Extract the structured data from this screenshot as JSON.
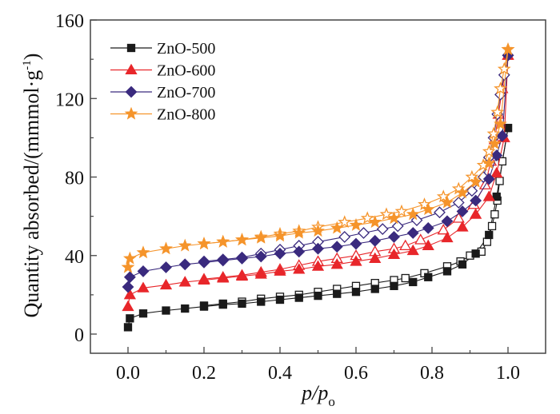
{
  "chart_data": {
    "type": "scatter",
    "title": "",
    "xlabel": "p/p_o",
    "xlabel_parts": {
      "main": "p/p",
      "sub": "o"
    },
    "ylabel": "Quantity absorbed/(mmmol·g⁻¹)",
    "ylabel_parts": {
      "main": "Quantity absorbed/(mmmol·g",
      "sup": "-1",
      "close": ")"
    },
    "xlim": [
      -0.1,
      1.1
    ],
    "ylim": [
      -5,
      160
    ],
    "xticks": [
      0.0,
      0.2,
      0.4,
      0.6,
      0.8,
      1.0
    ],
    "xtick_labels": [
      "0.0",
      "0.2",
      "0.4",
      "0.6",
      "0.8",
      "1.0"
    ],
    "xminor": [
      0.1,
      0.3,
      0.5,
      0.7,
      0.9
    ],
    "yticks": [
      0,
      40,
      80,
      120,
      160
    ],
    "ytick_labels": [
      "0",
      "40",
      "80",
      "120",
      "160"
    ],
    "yminor": [
      20,
      60,
      100,
      140
    ],
    "grid": false,
    "legend_position": "top-left",
    "series": [
      {
        "name": "ZnO-500",
        "color": "#1a1a1a",
        "marker": "square",
        "adsorption": [
          [
            0.0,
            3.5
          ],
          [
            0.005,
            8
          ],
          [
            0.04,
            10.5
          ],
          [
            0.1,
            12
          ],
          [
            0.15,
            13
          ],
          [
            0.2,
            14
          ],
          [
            0.25,
            15
          ],
          [
            0.3,
            15.5
          ],
          [
            0.35,
            16.5
          ],
          [
            0.4,
            17.5
          ],
          [
            0.45,
            18.5
          ],
          [
            0.5,
            19.5
          ],
          [
            0.55,
            20.5
          ],
          [
            0.6,
            21.5
          ],
          [
            0.65,
            23
          ],
          [
            0.7,
            24.5
          ],
          [
            0.75,
            26.5
          ],
          [
            0.79,
            29
          ],
          [
            0.84,
            32
          ],
          [
            0.88,
            35.5
          ],
          [
            0.915,
            41
          ],
          [
            0.95,
            50.5
          ],
          [
            0.97,
            70
          ],
          [
            1.0,
            105
          ]
        ],
        "desorption": [
          [
            1.0,
            105
          ],
          [
            0.985,
            88
          ],
          [
            0.978,
            78
          ],
          [
            0.972,
            68
          ],
          [
            0.965,
            61
          ],
          [
            0.958,
            55
          ],
          [
            0.945,
            47
          ],
          [
            0.93,
            42
          ],
          [
            0.9,
            40
          ],
          [
            0.875,
            37
          ],
          [
            0.84,
            34.5
          ],
          [
            0.78,
            31
          ],
          [
            0.73,
            28.5
          ],
          [
            0.7,
            27.5
          ],
          [
            0.65,
            26
          ],
          [
            0.6,
            24.5
          ],
          [
            0.55,
            23
          ],
          [
            0.5,
            21.5
          ],
          [
            0.45,
            20
          ],
          [
            0.4,
            19
          ],
          [
            0.35,
            18
          ],
          [
            0.3,
            16.5
          ],
          [
            0.25,
            15.5
          ],
          [
            0.2,
            14.5
          ]
        ]
      },
      {
        "name": "ZnO-600",
        "color": "#e8262a",
        "marker": "triangle",
        "adsorption": [
          [
            0.0,
            14
          ],
          [
            0.005,
            20
          ],
          [
            0.04,
            23.5
          ],
          [
            0.1,
            25
          ],
          [
            0.15,
            26.5
          ],
          [
            0.2,
            27.5
          ],
          [
            0.25,
            28.5
          ],
          [
            0.3,
            29.5
          ],
          [
            0.35,
            30.5
          ],
          [
            0.4,
            32
          ],
          [
            0.45,
            33
          ],
          [
            0.5,
            34.5
          ],
          [
            0.55,
            35.5
          ],
          [
            0.6,
            37
          ],
          [
            0.65,
            38.5
          ],
          [
            0.7,
            40.5
          ],
          [
            0.75,
            42.5
          ],
          [
            0.79,
            45
          ],
          [
            0.84,
            49
          ],
          [
            0.88,
            54.5
          ],
          [
            0.915,
            61
          ],
          [
            0.95,
            70
          ],
          [
            0.97,
            82
          ],
          [
            0.99,
            100
          ],
          [
            1.0,
            142
          ]
        ],
        "desorption": [
          [
            1.0,
            142
          ],
          [
            0.985,
            125
          ],
          [
            0.975,
            112
          ],
          [
            0.965,
            99
          ],
          [
            0.955,
            88
          ],
          [
            0.94,
            76
          ],
          [
            0.91,
            66
          ],
          [
            0.87,
            59
          ],
          [
            0.83,
            53
          ],
          [
            0.77,
            48
          ],
          [
            0.73,
            45
          ],
          [
            0.7,
            43.5
          ],
          [
            0.65,
            42
          ],
          [
            0.6,
            40
          ],
          [
            0.55,
            38.5
          ],
          [
            0.5,
            37
          ],
          [
            0.45,
            35
          ],
          [
            0.4,
            33
          ],
          [
            0.35,
            31.5
          ],
          [
            0.3,
            30
          ],
          [
            0.25,
            29
          ],
          [
            0.2,
            28
          ]
        ]
      },
      {
        "name": "ZnO-700",
        "color": "#3a2a7e",
        "marker": "diamond",
        "adsorption": [
          [
            0.0,
            24
          ],
          [
            0.005,
            29
          ],
          [
            0.04,
            32
          ],
          [
            0.1,
            34
          ],
          [
            0.15,
            35.5
          ],
          [
            0.2,
            36.5
          ],
          [
            0.25,
            37.5
          ],
          [
            0.3,
            38.5
          ],
          [
            0.35,
            39.5
          ],
          [
            0.4,
            41
          ],
          [
            0.45,
            42
          ],
          [
            0.5,
            43.5
          ],
          [
            0.55,
            44.5
          ],
          [
            0.6,
            46
          ],
          [
            0.65,
            47.5
          ],
          [
            0.7,
            49.5
          ],
          [
            0.75,
            51.5
          ],
          [
            0.79,
            54
          ],
          [
            0.84,
            57.5
          ],
          [
            0.88,
            62.5
          ],
          [
            0.915,
            68
          ],
          [
            0.95,
            79
          ],
          [
            0.97,
            91
          ],
          [
            0.985,
            101
          ],
          [
            1.0,
            142
          ]
        ],
        "desorption": [
          [
            1.0,
            142
          ],
          [
            0.99,
            132
          ],
          [
            0.98,
            122
          ],
          [
            0.972,
            112
          ],
          [
            0.962,
            100
          ],
          [
            0.95,
            90
          ],
          [
            0.935,
            80
          ],
          [
            0.905,
            73
          ],
          [
            0.87,
            67
          ],
          [
            0.82,
            62
          ],
          [
            0.76,
            58
          ],
          [
            0.71,
            55
          ],
          [
            0.67,
            53.5
          ],
          [
            0.62,
            51.5
          ],
          [
            0.57,
            49.5
          ],
          [
            0.5,
            47
          ],
          [
            0.45,
            45
          ],
          [
            0.4,
            43
          ],
          [
            0.35,
            41
          ],
          [
            0.3,
            39
          ],
          [
            0.25,
            38
          ],
          [
            0.2,
            37
          ]
        ]
      },
      {
        "name": "ZnO-800",
        "color": "#f5942b",
        "marker": "star",
        "adsorption": [
          [
            0.0,
            34
          ],
          [
            0.005,
            38.5
          ],
          [
            0.04,
            41.5
          ],
          [
            0.1,
            43.5
          ],
          [
            0.15,
            45
          ],
          [
            0.2,
            46
          ],
          [
            0.25,
            47
          ],
          [
            0.3,
            48
          ],
          [
            0.35,
            49
          ],
          [
            0.4,
            50
          ],
          [
            0.45,
            51.5
          ],
          [
            0.5,
            52.5
          ],
          [
            0.55,
            54
          ],
          [
            0.6,
            55.5
          ],
          [
            0.65,
            57
          ],
          [
            0.7,
            59
          ],
          [
            0.75,
            61
          ],
          [
            0.79,
            63.5
          ],
          [
            0.84,
            67
          ],
          [
            0.88,
            72
          ],
          [
            0.915,
            77.5
          ],
          [
            0.95,
            87
          ],
          [
            0.965,
            97
          ],
          [
            0.98,
            107
          ],
          [
            1.0,
            145
          ]
        ],
        "desorption": [
          [
            1.0,
            145
          ],
          [
            0.99,
            135
          ],
          [
            0.98,
            125
          ],
          [
            0.972,
            113
          ],
          [
            0.962,
            102
          ],
          [
            0.95,
            93
          ],
          [
            0.935,
            86
          ],
          [
            0.905,
            80
          ],
          [
            0.87,
            74
          ],
          [
            0.83,
            70
          ],
          [
            0.78,
            66
          ],
          [
            0.72,
            62.5
          ],
          [
            0.68,
            61
          ],
          [
            0.63,
            59
          ],
          [
            0.57,
            57
          ],
          [
            0.5,
            54.5
          ],
          [
            0.45,
            52.5
          ],
          [
            0.4,
            51
          ],
          [
            0.35,
            49.5
          ],
          [
            0.3,
            48
          ],
          [
            0.25,
            47
          ],
          [
            0.2,
            46
          ]
        ]
      }
    ]
  }
}
